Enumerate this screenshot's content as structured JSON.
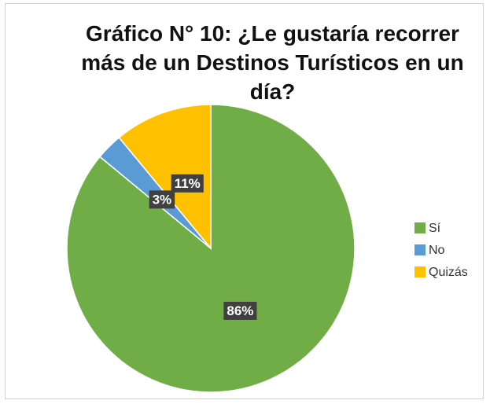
{
  "chart_data": {
    "type": "pie",
    "title": "Gráfico N° 10: ¿Le gustaría recorrer más de un Destinos Turísticos en un día?",
    "categories": [
      "Sí",
      "No",
      "Quizás"
    ],
    "values": [
      86,
      3,
      11
    ],
    "value_labels": [
      "86%",
      "3%",
      "11%"
    ],
    "colors": [
      "#70ad47",
      "#5b9bd5",
      "#ffc000"
    ],
    "legend": "right"
  }
}
